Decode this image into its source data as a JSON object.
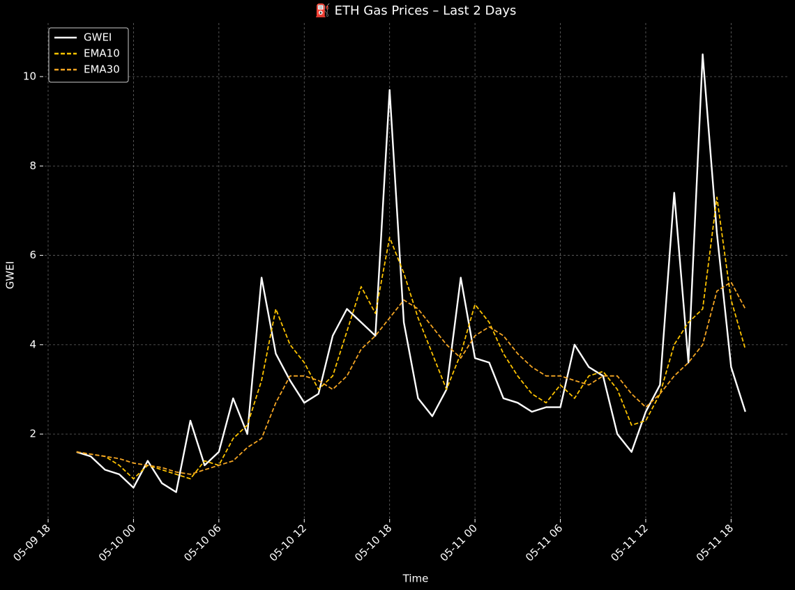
{
  "chart_data": {
    "type": "line",
    "title": "⛽ ETH Gas Prices – Last 2 Days",
    "x_label": "Time",
    "y_label": "GWEI",
    "x": [
      "05-09 20",
      "05-09 21",
      "05-09 22",
      "05-09 23",
      "05-10 00",
      "05-10 01",
      "05-10 02",
      "05-10 03",
      "05-10 04",
      "05-10 05",
      "05-10 06",
      "05-10 07",
      "05-10 08",
      "05-10 09",
      "05-10 10",
      "05-10 11",
      "05-10 12",
      "05-10 13",
      "05-10 14",
      "05-10 15",
      "05-10 16",
      "05-10 17",
      "05-10 18",
      "05-10 19",
      "05-10 20",
      "05-10 21",
      "05-10 22",
      "05-10 23",
      "05-11 00",
      "05-11 01",
      "05-11 02",
      "05-11 03",
      "05-11 04",
      "05-11 05",
      "05-11 06",
      "05-11 07",
      "05-11 08",
      "05-11 09",
      "05-11 10",
      "05-11 11",
      "05-11 12",
      "05-11 13",
      "05-11 14",
      "05-11 15",
      "05-11 16",
      "05-11 17",
      "05-11 18",
      "05-11 19"
    ],
    "series": [
      {
        "name": "GWEI",
        "color": "#ffffff",
        "dashed": false,
        "values": [
          1.6,
          1.5,
          1.2,
          1.1,
          0.8,
          1.4,
          0.9,
          0.7,
          2.3,
          1.3,
          1.6,
          2.8,
          2.0,
          5.5,
          3.8,
          3.2,
          2.7,
          2.9,
          4.2,
          4.8,
          4.5,
          4.2,
          9.7,
          4.5,
          2.8,
          2.4,
          3.0,
          5.5,
          3.7,
          3.6,
          2.8,
          2.7,
          2.5,
          2.6,
          2.6,
          4.0,
          3.5,
          3.3,
          2.0,
          1.6,
          2.5,
          3.1,
          7.4,
          3.6,
          10.5,
          6.5,
          3.5,
          2.5
        ]
      },
      {
        "name": "EMA10",
        "color": "#ffc400",
        "dashed": true,
        "values": [
          1.6,
          1.55,
          1.5,
          1.3,
          1.0,
          1.3,
          1.2,
          1.1,
          1.0,
          1.4,
          1.3,
          1.9,
          2.2,
          3.2,
          4.8,
          4.0,
          3.6,
          3.0,
          3.3,
          4.3,
          5.3,
          4.7,
          6.4,
          5.6,
          4.6,
          3.8,
          3.0,
          3.8,
          4.9,
          4.5,
          3.8,
          3.3,
          2.9,
          2.7,
          3.1,
          2.8,
          3.3,
          3.4,
          3.0,
          2.2,
          2.3,
          2.9,
          4.0,
          4.5,
          4.8,
          7.3,
          5.0,
          3.9
        ]
      },
      {
        "name": "EMA30",
        "color": "#f5a623",
        "dashed": true,
        "values": [
          1.6,
          1.55,
          1.5,
          1.45,
          1.35,
          1.3,
          1.25,
          1.15,
          1.1,
          1.2,
          1.3,
          1.4,
          1.7,
          1.9,
          2.7,
          3.3,
          3.3,
          3.2,
          3.0,
          3.3,
          3.9,
          4.2,
          4.6,
          5.0,
          4.8,
          4.4,
          4.0,
          3.7,
          4.2,
          4.4,
          4.2,
          3.8,
          3.5,
          3.3,
          3.3,
          3.2,
          3.1,
          3.3,
          3.3,
          2.9,
          2.6,
          2.9,
          3.3,
          3.6,
          4.0,
          5.2,
          5.4,
          4.8
        ]
      }
    ],
    "xlim": [
      "05-09 18",
      "05-11 22"
    ],
    "xticks": [
      "05-09 18",
      "05-10 00",
      "05-10 06",
      "05-10 12",
      "05-10 18",
      "05-11 00",
      "05-11 06",
      "05-11 12",
      "05-11 18"
    ],
    "ylim": [
      0.1,
      11.2
    ],
    "yticks": [
      2,
      4,
      6,
      8,
      10
    ],
    "grid": true,
    "legend": "upper left"
  }
}
